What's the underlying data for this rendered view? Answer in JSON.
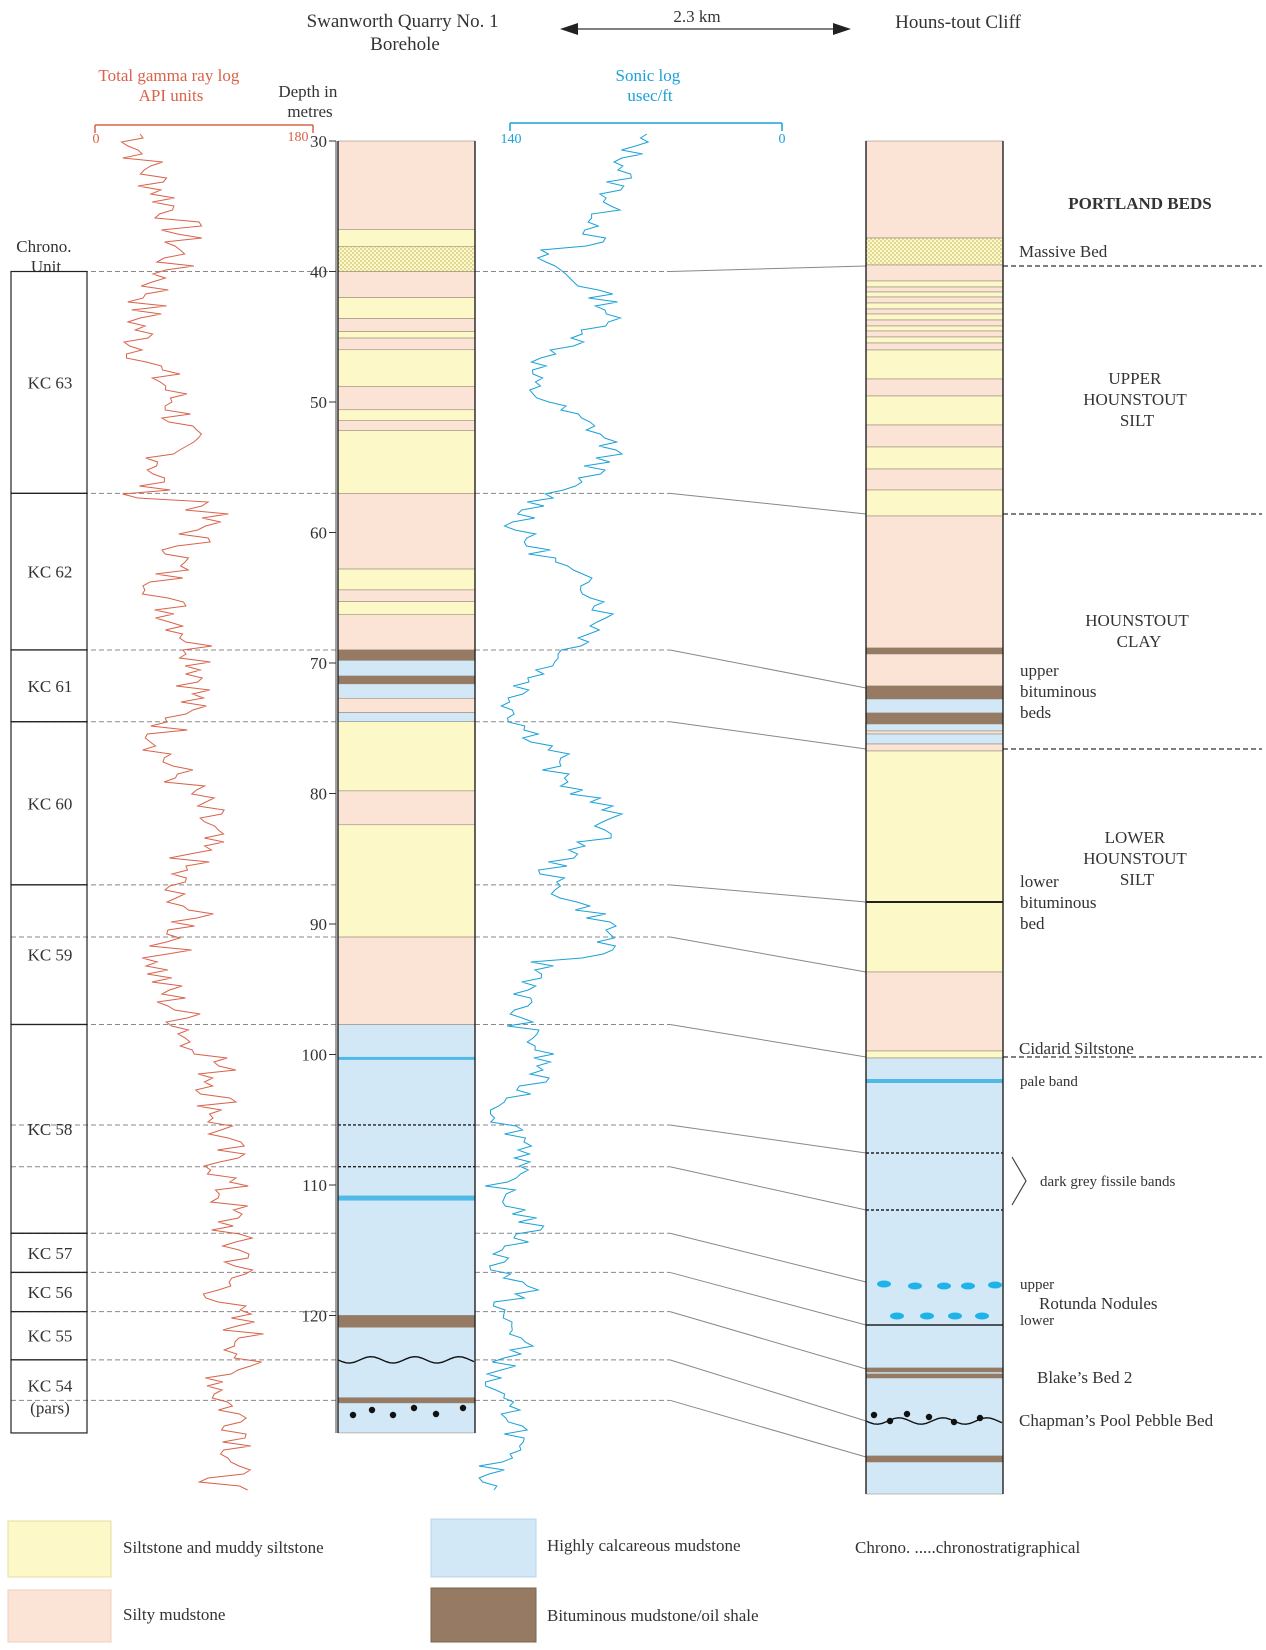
{
  "header": {
    "borehole_title": [
      "Swanworth Quarry No. 1",
      "Borehole"
    ],
    "distance": "2.3 km",
    "cliff_title": "Houns-tout Cliff"
  },
  "gamma_log": {
    "title": [
      "Total gamma ray log",
      "API units"
    ],
    "scale_min": "0",
    "scale_max": "180",
    "color": "#d9624a"
  },
  "depth_axis": {
    "title": [
      "Depth in",
      "metres"
    ],
    "ticks": [
      30,
      40,
      50,
      60,
      70,
      80,
      90,
      100,
      110,
      120
    ]
  },
  "sonic_log": {
    "title": [
      "Sonic log",
      "usec/ft"
    ],
    "scale_left": "140",
    "scale_right": "0",
    "color": "#1ba1d8"
  },
  "chrono": {
    "header": [
      "Chrono.",
      "Unit"
    ],
    "units": [
      {
        "label": [
          "KC 63"
        ],
        "top": 40.0,
        "bottom": 57.0
      },
      {
        "label": [
          "KC 62"
        ],
        "top": 57.0,
        "bottom": 69.0
      },
      {
        "label": [
          "KC 61"
        ],
        "top": 69.0,
        "bottom": 74.5
      },
      {
        "label": [
          "KC 60"
        ],
        "top": 74.5,
        "bottom": 87.0
      },
      {
        "label": [
          "KC 59"
        ],
        "top": 87.0,
        "bottom": 97.7
      },
      {
        "label": [
          "KC 58"
        ],
        "top": 97.7,
        "bottom": 113.7
      },
      {
        "label": [
          "KC 57"
        ],
        "top": 113.7,
        "bottom": 116.7
      },
      {
        "label": [
          "KC 56"
        ],
        "top": 116.7,
        "bottom": 119.7
      },
      {
        "label": [
          "KC 55"
        ],
        "top": 119.7,
        "bottom": 123.4
      },
      {
        "label": [
          "KC 54",
          "(pars)"
        ],
        "top": 123.4,
        "bottom": 129.0
      }
    ]
  },
  "cliff_labels": {
    "portland_beds": "PORTLAND BEDS",
    "massive_bed": "Massive Bed",
    "upper_hounstout_silt": [
      "UPPER",
      "HOUNSTOUT",
      "SILT"
    ],
    "hounstout_clay": [
      "HOUNSTOUT",
      "CLAY"
    ],
    "upper_bituminous_beds": [
      "upper",
      "bituminous",
      "beds"
    ],
    "lower_hounstout_silt": [
      "LOWER",
      "HOUNSTOUT",
      "SILT"
    ],
    "lower_bituminous_bed": [
      "lower",
      "bituminous",
      "bed"
    ],
    "cidarid_siltstone": "Cidarid Siltstone",
    "pale_band": "pale band",
    "dark_grey_fissile_bands": "dark grey fissile bands",
    "rotunda_upper": "upper",
    "rotunda_nodules": "Rotunda Nodules",
    "rotunda_lower": "lower",
    "blakes_bed": "Blake’s Bed 2",
    "chapmans_pool": "Chapman’s Pool Pebble Bed"
  },
  "legend": {
    "siltstone": "Siltstone and muddy siltstone",
    "silty_mudstone": "Silty mudstone",
    "calcareous": "Highly calcareous mudstone",
    "bituminous": "Bituminous mudstone/oil shale",
    "chrono_note": "Chrono. .....chronostratigraphical"
  },
  "colors": {
    "siltstone": "#fcf8c8",
    "silty_mudstone": "#fbe3d6",
    "calcareous": "#d3e8f6",
    "bituminous": "#967a63",
    "pale_band": "#4fbae8",
    "nodule": "#1eb4ea"
  }
}
